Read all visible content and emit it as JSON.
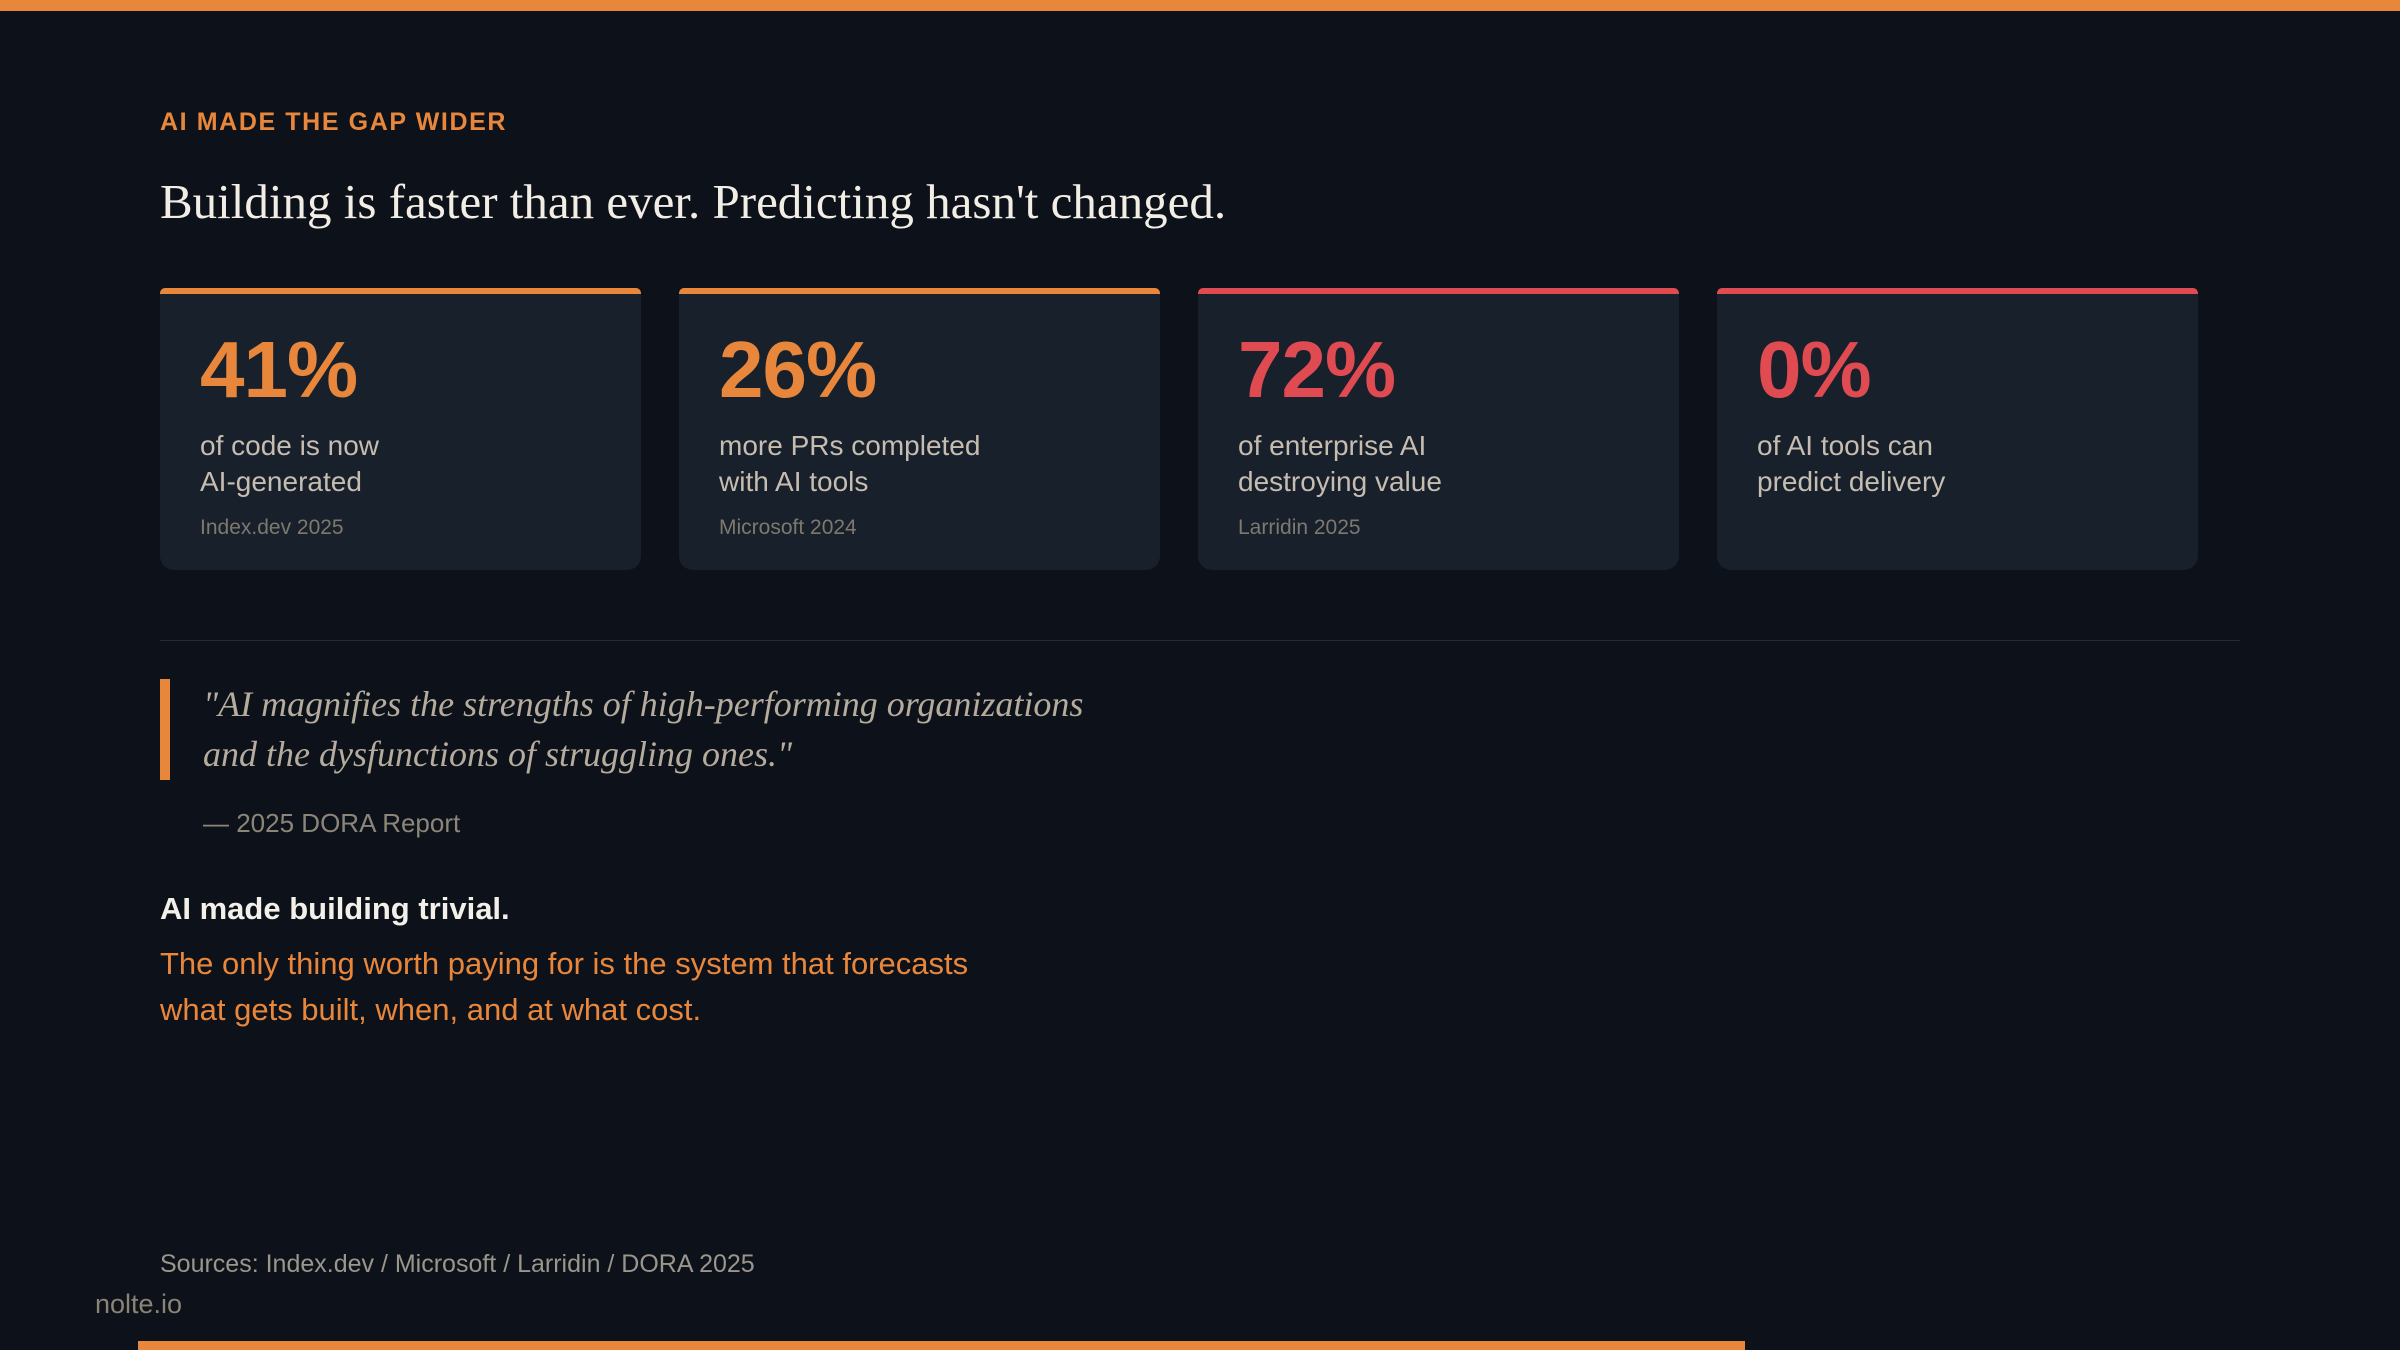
{
  "slide": {
    "eyebrow": "AI MADE THE GAP WIDER",
    "title": "Building is faster than ever. Predicting hasn't changed."
  },
  "cards": [
    {
      "value": "41%",
      "accent": "orange",
      "desc_lines": [
        "of code is now",
        "AI-generated"
      ],
      "source": "Index.dev 2025"
    },
    {
      "value": "26%",
      "accent": "orange",
      "desc_lines": [
        "more PRs completed",
        "with AI tools"
      ],
      "source": "Microsoft 2024"
    },
    {
      "value": "72%",
      "accent": "red",
      "desc_lines": [
        "of enterprise AI",
        "destroying value"
      ],
      "source": "Larridin 2025"
    },
    {
      "value": "0%",
      "accent": "red",
      "desc_lines": [
        "of AI tools can",
        "predict delivery"
      ],
      "source": ""
    }
  ],
  "quote": {
    "lines": [
      "\"AI magnifies the strengths of high-performing organizations",
      "and the dysfunctions of struggling ones.\""
    ],
    "attribution": "— 2025 DORA Report"
  },
  "takeaway": {
    "bold": "AI made building trivial.",
    "highlight_lines": [
      "The only thing worth paying for is the system that forecasts",
      "what gets built, when, and at what cost."
    ]
  },
  "footer": {
    "sources": "Sources: Index.dev  /  Microsoft  /  Larridin  /  DORA 2025",
    "brand": "nolte.io"
  },
  "colors": {
    "accent_orange": "#E8873B",
    "accent_red": "#E04B52",
    "background": "#0D1119",
    "card_background": "#18202C"
  }
}
